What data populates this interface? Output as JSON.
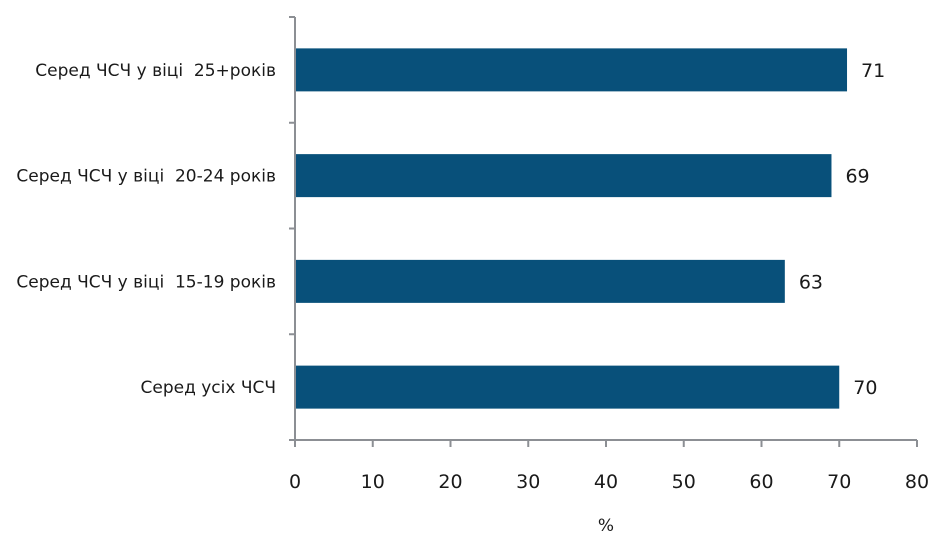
{
  "chart_data": {
    "type": "bar",
    "orientation": "horizontal",
    "categories": [
      "Серед ЧСЧ у віці  25+років",
      "Серед ЧСЧ у віці  20-24 років",
      "Серед ЧСЧ у віці  15-19 років",
      "Серед усіх ЧСЧ"
    ],
    "values": [
      71,
      69,
      63,
      70
    ],
    "data_labels": [
      "71",
      "69",
      "63",
      "70"
    ],
    "xlabel": "%",
    "xlim": [
      0,
      80
    ],
    "xticks": [
      0,
      10,
      20,
      30,
      40,
      50,
      60,
      70,
      80
    ],
    "grid": false,
    "legend": "none",
    "colors": {
      "bar": "#08507a",
      "axis": "#8c8f94"
    }
  }
}
